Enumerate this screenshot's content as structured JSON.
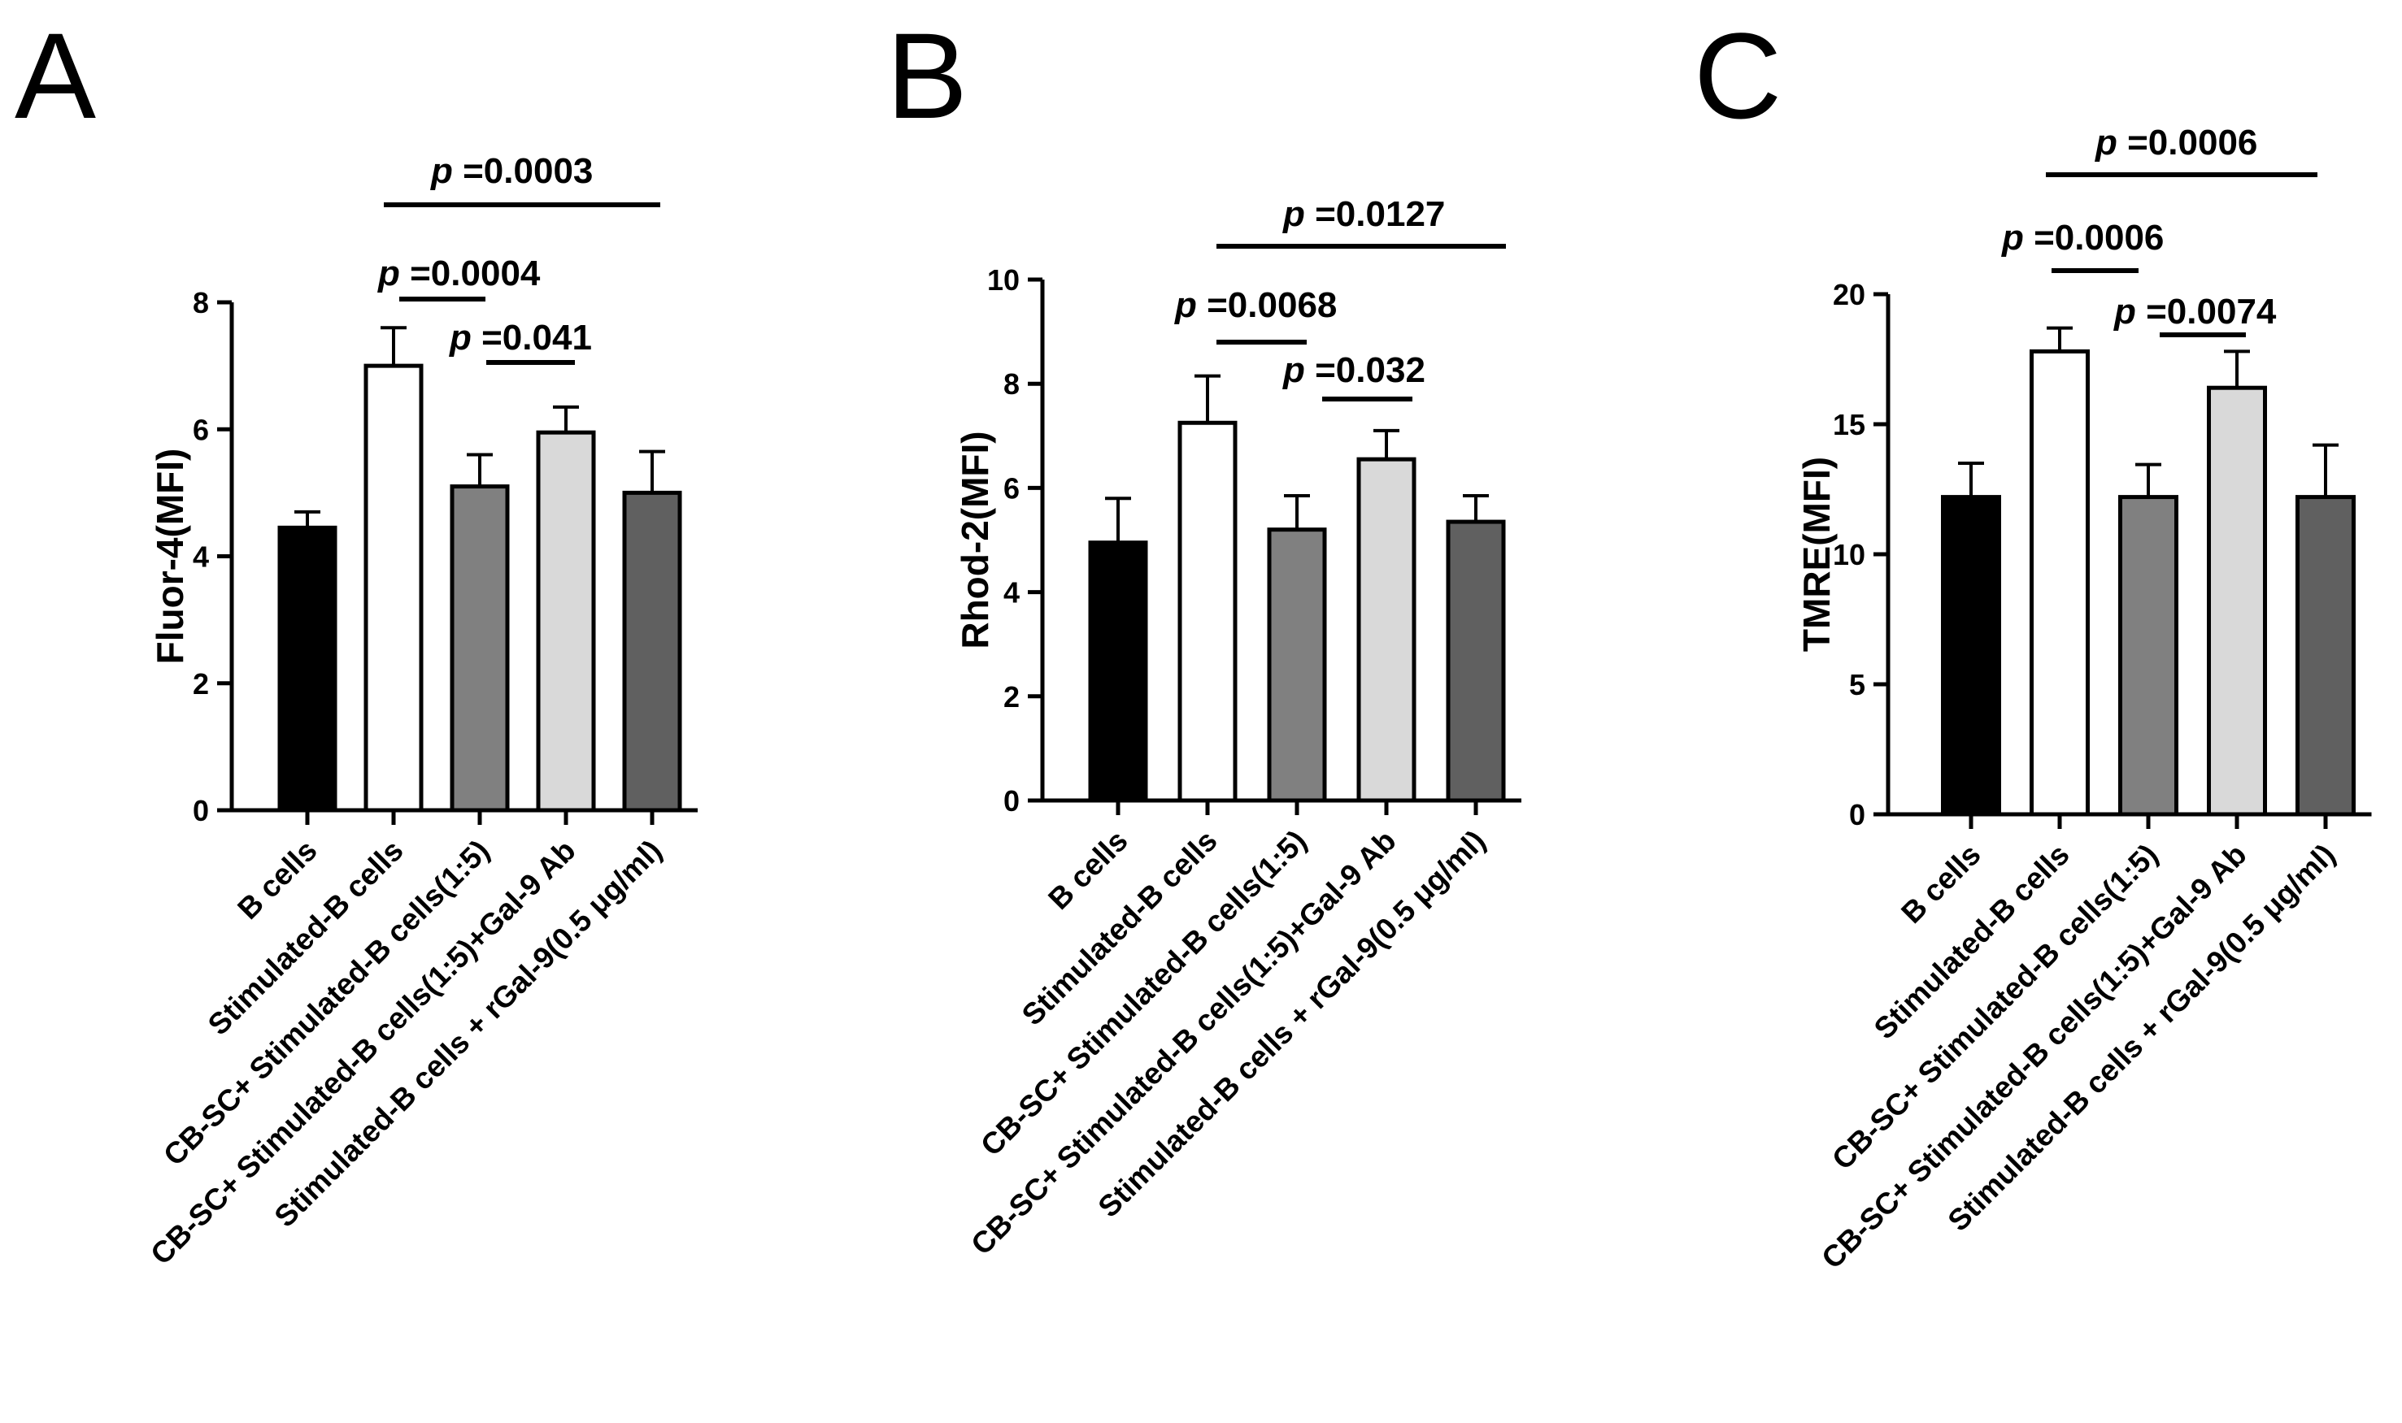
{
  "categories": [
    "B cells",
    "Stimulated-B cells",
    "CB-SC+ Stimulated-B cells(1:5)",
    "CB-SC+ Stimulated-B cells(1:5)+Gal-9 Ab",
    "Stimulated-B cells + rGal-9(0.5 μg/ml)"
  ],
  "bar_colors": [
    "#000000",
    "#ffffff",
    "#808080",
    "#d9d9d9",
    "#606060"
  ],
  "chart_data": [
    {
      "panel": "A",
      "type": "bar",
      "ylabel": "Fluor-4(MFI)",
      "ylim": [
        0,
        8
      ],
      "yticks": [
        "0",
        "2",
        "4",
        "6",
        "8"
      ],
      "values": [
        4.45,
        7.0,
        5.1,
        5.95,
        5.0
      ],
      "errors": [
        0.25,
        0.6,
        0.5,
        0.4,
        0.65
      ],
      "significance": [
        {
          "between": [
            1,
            2
          ],
          "p_prefix": "p",
          "p_value": "=0.0004"
        },
        {
          "between": [
            2,
            3
          ],
          "p_prefix": "p",
          "p_value": "=0.041"
        },
        {
          "between": [
            1,
            4
          ],
          "p_prefix": "p",
          "p_value": "=0.0003"
        }
      ]
    },
    {
      "panel": "B",
      "type": "bar",
      "ylabel": "Rhod-2(MFI)",
      "ylim": [
        0,
        10
      ],
      "yticks": [
        "0",
        "2",
        "4",
        "6",
        "8",
        "10"
      ],
      "values": [
        4.95,
        7.25,
        5.2,
        6.55,
        5.35
      ],
      "errors": [
        0.85,
        0.9,
        0.65,
        0.55,
        0.5
      ],
      "significance": [
        {
          "between": [
            1,
            2
          ],
          "p_prefix": "p",
          "p_value": "=0.0068"
        },
        {
          "between": [
            2,
            3
          ],
          "p_prefix": "p",
          "p_value": "=0.032"
        },
        {
          "between": [
            1,
            4
          ],
          "p_prefix": "p",
          "p_value": "=0.0127"
        }
      ]
    },
    {
      "panel": "C",
      "type": "bar",
      "ylabel": "TMRE(MFI)",
      "ylim": [
        0,
        20
      ],
      "yticks": [
        "0",
        "5",
        "10",
        "15",
        "20"
      ],
      "values": [
        12.2,
        17.8,
        12.2,
        16.4,
        12.2
      ],
      "errors": [
        1.3,
        0.9,
        1.25,
        1.4,
        2.0
      ],
      "significance": [
        {
          "between": [
            1,
            2
          ],
          "p_prefix": "p",
          "p_value": "=0.0006"
        },
        {
          "between": [
            2,
            3
          ],
          "p_prefix": "p",
          "p_value": "=0.0074"
        },
        {
          "between": [
            1,
            4
          ],
          "p_prefix": "p",
          "p_value": "=0.0006"
        }
      ]
    }
  ]
}
